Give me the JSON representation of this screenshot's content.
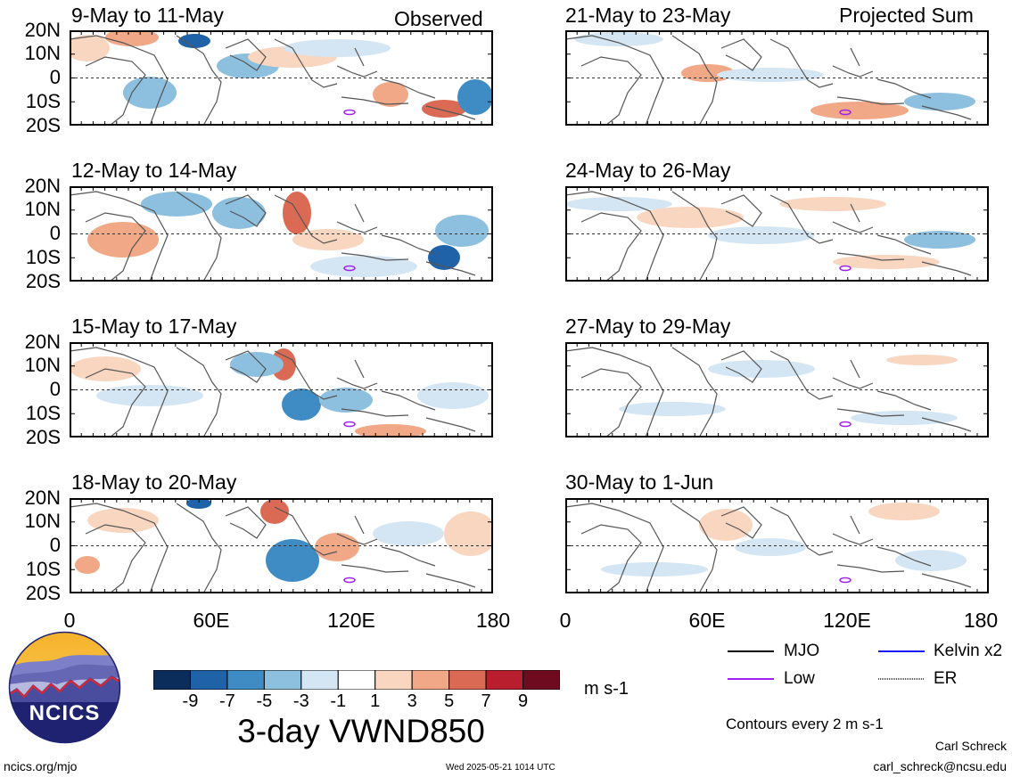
{
  "labels": {
    "observed": "Observed",
    "projected": "Projected Sum"
  },
  "panels": [
    {
      "title": "9-May to 11-May",
      "column": "left",
      "row": 0
    },
    {
      "title": "12-May to 14-May",
      "column": "left",
      "row": 1
    },
    {
      "title": "15-May to 17-May",
      "column": "left",
      "row": 2
    },
    {
      "title": "18-May to 20-May",
      "column": "left",
      "row": 3
    },
    {
      "title": "21-May to 23-May",
      "column": "right",
      "row": 0
    },
    {
      "title": "24-May to 26-May",
      "column": "right",
      "row": 1
    },
    {
      "title": "27-May to 29-May",
      "column": "right",
      "row": 2
    },
    {
      "title": "30-May to 1-Jun",
      "column": "right",
      "row": 3
    }
  ],
  "lat_labels": [
    "20N",
    "10N",
    "0",
    "10S",
    "20S"
  ],
  "lon_labels": [
    "0",
    "60E",
    "120E",
    "180"
  ],
  "colorbar": {
    "ticks": [
      "-9",
      "-7",
      "-5",
      "-3",
      "-1",
      "1",
      "3",
      "5",
      "7",
      "9"
    ],
    "colors": [
      "#0b2d5c",
      "#1f62a8",
      "#3f8cc4",
      "#8dbfde",
      "#d4e6f3",
      "#ffffff",
      "#f9d6c0",
      "#f0a886",
      "#db6a54",
      "#b81e2e",
      "#6e0b1e"
    ],
    "units": "m s-1"
  },
  "variable_title": "3-day VWND850",
  "legend": [
    {
      "name": "MJO",
      "color": "#000000"
    },
    {
      "name": "Kelvin x2",
      "color": "#1a1aff"
    },
    {
      "name": "Low",
      "color": "#a020f0"
    },
    {
      "name": "ER",
      "color": "#e8141e"
    }
  ],
  "contour_note": "Contours every 2 m s-1",
  "logo_text": "NCICS",
  "footer": {
    "site": "ncics.org/mjo",
    "timestamp": "Wed 2025-05-21 1014 UTC",
    "author": "Carl Schreck",
    "email": "carl_schreck@ncsu.edu"
  },
  "icons": {
    "logo": "ncics-mountain-logo"
  }
}
